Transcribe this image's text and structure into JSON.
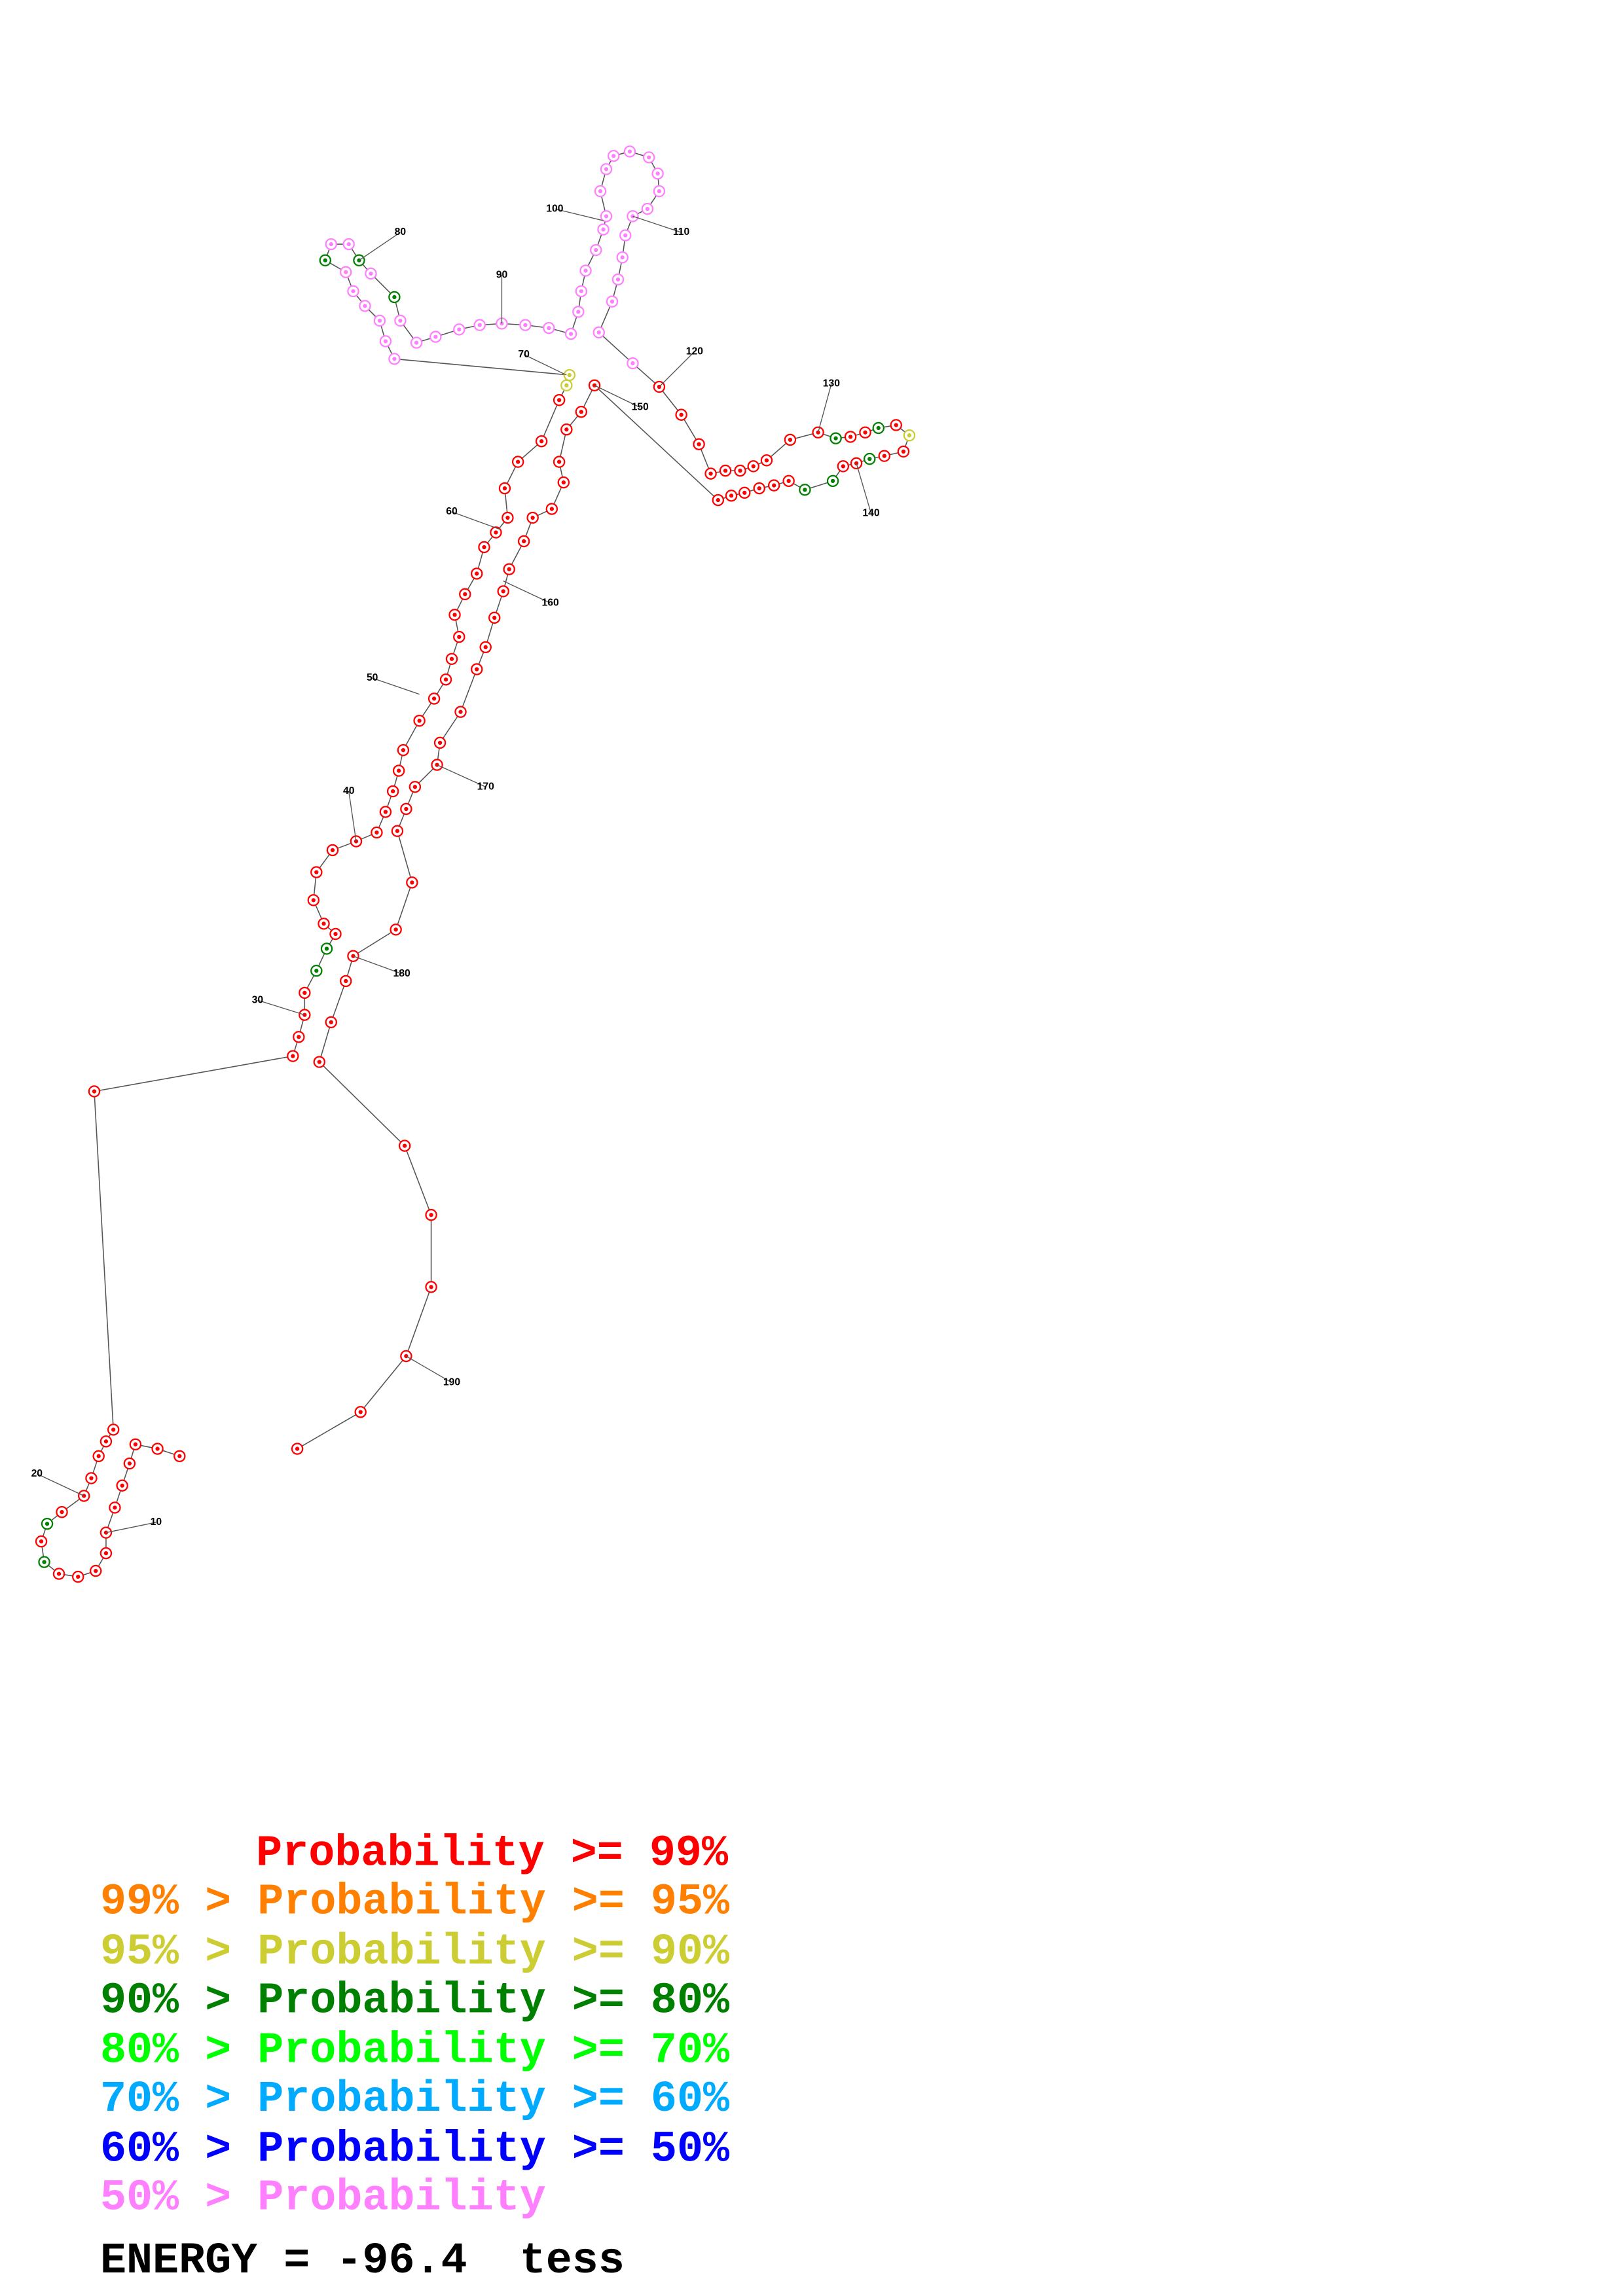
{
  "position_labels": [
    10,
    20,
    30,
    40,
    50,
    60,
    70,
    80,
    90,
    100,
    110,
    120,
    130,
    140,
    150,
    160,
    170,
    180,
    190
  ],
  "legend": [
    {
      "text": "Probability >= 99%",
      "color": "#ff0000"
    },
    {
      "text": "99% > Probability >= 95%",
      "color": "#ff8000"
    },
    {
      "text": "95% > Probability >= 90%",
      "color": "#cccc33"
    },
    {
      "text": "90% > Probability >= 80%",
      "color": "#008000"
    },
    {
      "text": "80% > Probability >= 70%",
      "color": "#00ff00"
    },
    {
      "text": "70% > Probability >= 60%",
      "color": "#00aaff"
    },
    {
      "text": "60% > Probability >= 50%",
      "color": "#0000ff"
    },
    {
      "text": "50% > Probability",
      "color": "#ff80ff"
    }
  ],
  "energy": "ENERGY = -96.4  tess"
}
